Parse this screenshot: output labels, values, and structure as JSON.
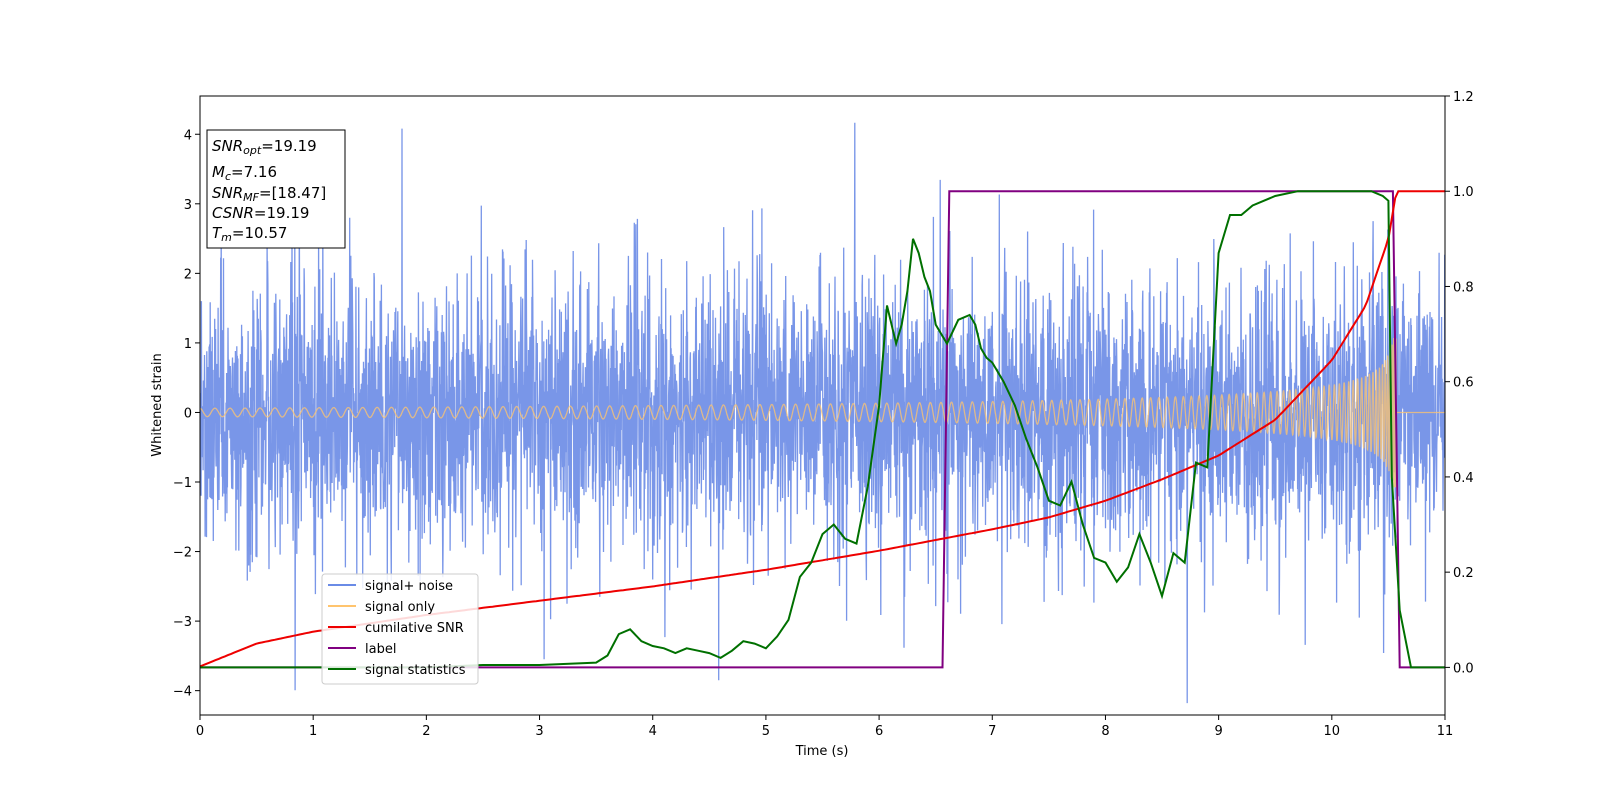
{
  "chart_data": {
    "type": "line",
    "title": "",
    "xlabel": "Time (s)",
    "ylabel": "Whitened strain",
    "y2label": "",
    "xlim": [
      0,
      11
    ],
    "ylim": [
      -4.35,
      4.55
    ],
    "y2lim": [
      -0.1,
      1.2
    ],
    "xticks": [
      "0",
      "1",
      "2",
      "3",
      "4",
      "5",
      "6",
      "7",
      "8",
      "9",
      "10",
      "11"
    ],
    "yticks": [
      "−4",
      "−3",
      "−2",
      "−1",
      "0",
      "1",
      "2",
      "3",
      "4"
    ],
    "y2ticks": [
      "0.0",
      "0.2",
      "0.4",
      "0.6",
      "0.8",
      "1.0",
      "1.2"
    ],
    "grid": false,
    "legend_position": "lower-left",
    "colors": {
      "signal_noise": "#6a8be6",
      "signal_only": "#ffc46e",
      "cumulative_snr": "#ee0000",
      "label": "#800080",
      "signal_statistics": "#007000"
    },
    "series": [
      {
        "name": "signal+ noise",
        "axis": "left",
        "description_values": "whitened strain noise, approx std 1.0, spikes up to ±4.2",
        "noise_std": 1.0
      },
      {
        "name": "signal only",
        "axis": "left",
        "chirp_amplitude_start": 0.06,
        "chirp_amplitude_end": 1.1,
        "merger_time": 10.57
      },
      {
        "name": "cumilative SNR",
        "axis": "right",
        "x": [
          0,
          0.5,
          1,
          2,
          3,
          4,
          5,
          6,
          7,
          7.5,
          8,
          8.5,
          9,
          9.5,
          10,
          10.3,
          10.5,
          10.57,
          11
        ],
        "values": [
          0.002,
          0.05,
          0.075,
          0.11,
          0.14,
          0.17,
          0.205,
          0.245,
          0.29,
          0.315,
          0.35,
          0.395,
          0.445,
          0.52,
          0.645,
          0.76,
          0.9,
          1.0,
          1.0
        ]
      },
      {
        "name": "label",
        "axis": "right",
        "x": [
          0,
          6.56,
          6.62,
          10.54,
          10.6,
          11
        ],
        "values": [
          0,
          0,
          1,
          1,
          0,
          0
        ]
      },
      {
        "name": "signal statistics",
        "axis": "right",
        "x": [
          0,
          1,
          2,
          2.5,
          3,
          3.5,
          3.6,
          3.7,
          3.8,
          3.9,
          4.0,
          4.1,
          4.2,
          4.3,
          4.4,
          4.5,
          4.6,
          4.7,
          4.8,
          4.9,
          5.0,
          5.1,
          5.2,
          5.3,
          5.4,
          5.5,
          5.6,
          5.7,
          5.8,
          5.9,
          6.0,
          6.07,
          6.15,
          6.2,
          6.25,
          6.3,
          6.35,
          6.4,
          6.45,
          6.5,
          6.55,
          6.6,
          6.7,
          6.8,
          6.85,
          6.9,
          6.95,
          7.0,
          7.1,
          7.2,
          7.3,
          7.4,
          7.5,
          7.6,
          7.7,
          7.8,
          7.9,
          8.0,
          8.1,
          8.2,
          8.3,
          8.4,
          8.5,
          8.6,
          8.7,
          8.8,
          8.9,
          9.0,
          9.1,
          9.2,
          9.3,
          9.5,
          9.7,
          10.0,
          10.2,
          10.35,
          10.45,
          10.5,
          10.53,
          10.6,
          10.7,
          11
        ],
        "values": [
          0.0,
          0.0,
          0.0,
          0.005,
          0.005,
          0.01,
          0.025,
          0.07,
          0.08,
          0.055,
          0.045,
          0.04,
          0.03,
          0.04,
          0.035,
          0.03,
          0.02,
          0.035,
          0.055,
          0.05,
          0.04,
          0.065,
          0.1,
          0.19,
          0.22,
          0.28,
          0.3,
          0.27,
          0.26,
          0.38,
          0.55,
          0.76,
          0.68,
          0.72,
          0.79,
          0.9,
          0.87,
          0.82,
          0.79,
          0.72,
          0.7,
          0.68,
          0.73,
          0.74,
          0.72,
          0.67,
          0.65,
          0.64,
          0.6,
          0.55,
          0.48,
          0.42,
          0.35,
          0.34,
          0.39,
          0.3,
          0.23,
          0.22,
          0.18,
          0.21,
          0.28,
          0.22,
          0.15,
          0.24,
          0.22,
          0.43,
          0.42,
          0.87,
          0.95,
          0.95,
          0.97,
          0.99,
          1.0,
          1.0,
          1.0,
          1.0,
          0.99,
          0.98,
          0.4,
          0.12,
          0.0,
          0.0
        ]
      }
    ]
  },
  "info_box": {
    "snr_opt_label": "SNR",
    "snr_opt_sub": "opt",
    "snr_opt_value": "=19.19",
    "mc_label": "M",
    "mc_sub": "c",
    "mc_value": "=7.16",
    "snr_mf_label": "SNR",
    "snr_mf_sub": "MF",
    "snr_mf_value": "=[18.47]",
    "csnr_label": "CSNR",
    "csnr_value": "=19.19",
    "tm_label": "T",
    "tm_sub": "m",
    "tm_value": "=10.57"
  },
  "legend": {
    "items": [
      {
        "label": "signal+ noise",
        "color": "#6a8be6"
      },
      {
        "label": "signal only",
        "color": "#ffc46e"
      },
      {
        "label": "cumilative SNR",
        "color": "#ee0000"
      },
      {
        "label": "label",
        "color": "#800080"
      },
      {
        "label": "signal statistics",
        "color": "#007000"
      }
    ]
  }
}
